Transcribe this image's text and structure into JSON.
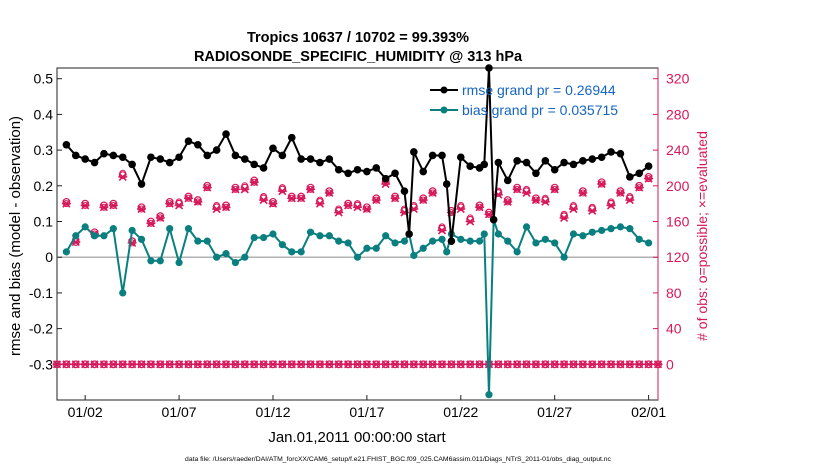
{
  "chart_data": {
    "type": "line",
    "title": [
      "Tropics 10637 / 10702 = 99.393%",
      "RADIOSONDE_SPECIFIC_HUMIDITY @ 313 hPa"
    ],
    "xlabel": "Jan.01,2011 00:00:00 start",
    "ylabel_left": "rmse and bias (model - observation)",
    "ylabel_right": "# of obs: o=possible; ×=evaluated",
    "footer": "data file: /Users/raeder/DAI/ATM_forcXX/CAM6_setup/f.e21.FHIST_BGC.f09_025.CAM6assim.011/Diags_NTrS_2011-01/obs_diag_output.nc",
    "xlim": [
      0,
      32
    ],
    "ylim_left": [
      -0.4,
      0.53
    ],
    "ylim_right": [
      -40,
      332
    ],
    "x_ticks": [
      {
        "v": 1.5,
        "label": "01/02"
      },
      {
        "v": 6.5,
        "label": "01/07"
      },
      {
        "v": 11.5,
        "label": "01/12"
      },
      {
        "v": 16.5,
        "label": "01/17"
      },
      {
        "v": 21.5,
        "label": "01/22"
      },
      {
        "v": 26.5,
        "label": "01/27"
      },
      {
        "v": 31.5,
        "label": "02/01"
      }
    ],
    "y_ticks_left": [
      "0.5",
      "0.4",
      "0.3",
      "0.2",
      "0.1",
      "0",
      "-0.1",
      "-0.2",
      "-0.3"
    ],
    "y_ticks_left_values": [
      0.5,
      0.4,
      0.3,
      0.2,
      0.1,
      0,
      -0.1,
      -0.2,
      -0.3
    ],
    "y_ticks_right": [
      "320",
      "280",
      "240",
      "200",
      "160",
      "120",
      "80",
      "40",
      "0"
    ],
    "y_ticks_right_values": [
      320,
      280,
      240,
      200,
      160,
      120,
      80,
      40,
      0
    ],
    "legend": [
      {
        "name": "rmse grand pr = 0.26944",
        "color": "#000000"
      },
      {
        "name": "bias grand pr = 0.035715",
        "color": "#0a7f80"
      }
    ],
    "colors": {
      "rmse": "#000000",
      "bias": "#0a7f80",
      "obs": "#d6195a",
      "zero_line": "#b0b0b0"
    },
    "rmse_x": [
      0.5,
      1.0,
      1.5,
      2.0,
      2.5,
      3.0,
      3.5,
      4.0,
      4.5,
      5.0,
      5.5,
      6.0,
      6.5,
      7.0,
      7.5,
      8.0,
      8.5,
      9.0,
      9.5,
      10.0,
      10.5,
      11.0,
      11.5,
      12.0,
      12.5,
      13.0,
      13.5,
      14.0,
      14.5,
      15.0,
      15.5,
      16.0,
      16.5,
      17.0,
      17.5,
      18.0,
      18.5,
      18.75,
      19.0,
      19.5,
      20.0,
      20.5,
      20.75,
      21.0,
      21.5,
      22.0,
      22.5,
      22.75,
      23.0,
      23.25,
      23.5,
      24.0,
      24.5,
      25.0,
      25.5,
      26.0,
      26.5,
      27.0,
      27.5,
      28.0,
      28.5,
      29.0,
      29.5,
      30.0,
      30.5,
      31.0,
      31.5
    ],
    "rmse_y": [
      0.315,
      0.285,
      0.275,
      0.265,
      0.29,
      0.285,
      0.28,
      0.26,
      0.205,
      0.28,
      0.275,
      0.265,
      0.28,
      0.325,
      0.315,
      0.285,
      0.3,
      0.345,
      0.285,
      0.275,
      0.26,
      0.25,
      0.305,
      0.285,
      0.335,
      0.275,
      0.275,
      0.265,
      0.275,
      0.245,
      0.235,
      0.245,
      0.24,
      0.25,
      0.22,
      0.235,
      0.185,
      0.065,
      0.295,
      0.24,
      0.285,
      0.285,
      0.205,
      0.045,
      0.28,
      0.255,
      0.25,
      0.26,
      0.53,
      0.105,
      0.265,
      0.215,
      0.27,
      0.265,
      0.235,
      0.27,
      0.245,
      0.265,
      0.26,
      0.27,
      0.275,
      0.28,
      0.295,
      0.29,
      0.225,
      0.235,
      0.255
    ],
    "bias_x": [
      0.5,
      1.0,
      1.5,
      2.0,
      2.5,
      3.0,
      3.5,
      4.0,
      4.5,
      5.0,
      5.5,
      6.0,
      6.5,
      7.0,
      7.5,
      8.0,
      8.5,
      9.0,
      9.5,
      10.0,
      10.5,
      11.0,
      11.5,
      12.0,
      12.5,
      13.0,
      13.5,
      14.0,
      14.5,
      15.0,
      15.5,
      16.0,
      16.5,
      17.0,
      17.5,
      18.0,
      18.5,
      18.75,
      19.0,
      19.5,
      20.0,
      20.5,
      20.75,
      21.0,
      21.5,
      22.0,
      22.5,
      22.75,
      23.0,
      23.25,
      23.5,
      24.0,
      24.5,
      25.0,
      25.5,
      26.0,
      26.5,
      27.0,
      27.5,
      28.0,
      28.5,
      29.0,
      29.5,
      30.0,
      30.5,
      31.0,
      31.5
    ],
    "bias_y": [
      0.015,
      0.06,
      0.085,
      0.06,
      0.06,
      0.08,
      -0.1,
      0.075,
      0.05,
      -0.01,
      -0.01,
      0.08,
      -0.015,
      0.08,
      0.045,
      0.045,
      0.0,
      0.01,
      -0.015,
      0.0,
      0.055,
      0.055,
      0.065,
      0.035,
      0.015,
      0.015,
      0.07,
      0.06,
      0.06,
      0.045,
      0.04,
      0.0,
      0.025,
      0.025,
      0.06,
      0.04,
      0.045,
      0.065,
      0.005,
      0.025,
      0.045,
      0.05,
      0.015,
      0.065,
      0.05,
      0.045,
      0.045,
      0.065,
      -0.385,
      0.105,
      0.065,
      0.045,
      0.015,
      0.085,
      0.04,
      0.05,
      0.04,
      0.0,
      0.065,
      0.06,
      0.07,
      0.075,
      0.08,
      0.085,
      0.08,
      0.05,
      0.04
    ],
    "possible_x": [
      0.5,
      1.0,
      1.5,
      2.0,
      2.5,
      3.0,
      3.5,
      4.0,
      4.5,
      5.0,
      5.5,
      6.0,
      6.5,
      7.0,
      7.5,
      8.0,
      8.5,
      9.0,
      9.5,
      10.0,
      10.5,
      11.0,
      11.5,
      12.0,
      12.5,
      13.0,
      13.5,
      14.0,
      14.5,
      15.0,
      15.5,
      16.0,
      16.5,
      17.0,
      17.5,
      18.0,
      18.5,
      19.0,
      19.5,
      20.0,
      20.5,
      21.0,
      21.5,
      22.0,
      22.5,
      23.0,
      23.5,
      24.0,
      24.5,
      25.0,
      25.5,
      26.0,
      26.5,
      27.0,
      27.5,
      28.0,
      28.5,
      29.0,
      29.5,
      30.0,
      30.5,
      31.0,
      31.5
    ],
    "possible_y": [
      182,
      137,
      180,
      148,
      178,
      180,
      212,
      138,
      176,
      160,
      166,
      182,
      180,
      188,
      184,
      200,
      176,
      178,
      198,
      198,
      206,
      186,
      182,
      196,
      188,
      188,
      198,
      182,
      194,
      172,
      180,
      178,
      176,
      186,
      204,
      188,
      172,
      176,
      186,
      194,
      152,
      172,
      176,
      162,
      178,
      170,
      192,
      184,
      198,
      194,
      186,
      184,
      198,
      166,
      176,
      194,
      174,
      204,
      180,
      194,
      186,
      200,
      210
    ],
    "possible_y_alt": [
      180,
      139,
      178,
      146,
      176,
      178,
      214,
      136,
      174,
      158,
      164,
      180,
      182,
      186,
      182,
      198,
      178,
      176,
      196,
      200,
      204,
      188,
      180,
      198,
      186,
      186,
      196,
      184,
      192,
      174,
      178,
      180,
      174,
      184,
      206,
      186,
      174,
      178,
      184,
      192,
      154,
      170,
      178,
      164,
      176,
      168,
      194,
      182,
      196,
      196,
      184,
      186,
      196,
      168,
      178,
      192,
      176,
      202,
      182,
      192,
      188,
      198,
      208
    ],
    "evaluated_y": [
      180,
      137,
      178,
      146,
      176,
      178,
      210,
      136,
      174,
      158,
      164,
      180,
      178,
      186,
      182,
      198,
      174,
      176,
      196,
      196,
      204,
      184,
      180,
      194,
      186,
      186,
      196,
      180,
      192,
      170,
      178,
      176,
      174,
      184,
      202,
      186,
      170,
      174,
      184,
      192,
      150,
      170,
      174,
      160,
      176,
      168,
      190,
      182,
      196,
      192,
      184,
      182,
      196,
      164,
      174,
      192,
      172,
      202,
      178,
      192,
      184,
      198,
      208
    ],
    "obs_zero_row_x_start": 0,
    "obs_zero_row_x_end": 32,
    "obs_zero_row_step": 0.5,
    "obs_zero_row_y": 0
  }
}
